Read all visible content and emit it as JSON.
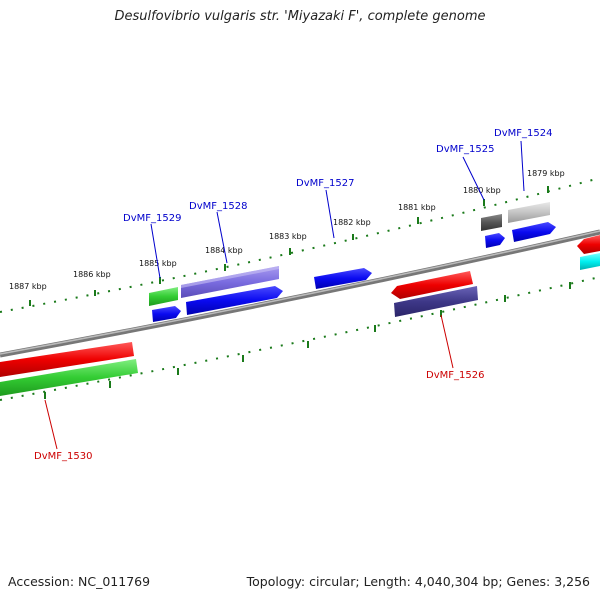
{
  "title": "Desulfovibrio vulgaris str. 'Miyazaki F', complete genome",
  "footer": {
    "accession": "Accession: NC_011769",
    "summary": "Topology: circular; Length: 4,040,304 bp; Genes: 3,256"
  },
  "ticks": [
    "1879 kbp",
    "1880 kbp",
    "1881 kbp",
    "1882 kbp",
    "1883 kbp",
    "1884 kbp",
    "1885 kbp",
    "1886 kbp",
    "1887 kbp"
  ],
  "gene_labels": [
    "DvMF_1524",
    "DvMF_1525",
    "DvMF_1526",
    "DvMF_1527",
    "DvMF_1528",
    "DvMF_1529",
    "DvMF_1530"
  ],
  "colors": {
    "gene_label_blue": "#0000cc",
    "gene_label_red": "#cc0000",
    "tick_green": "#1a7a1a",
    "backbone": "#888888"
  }
}
